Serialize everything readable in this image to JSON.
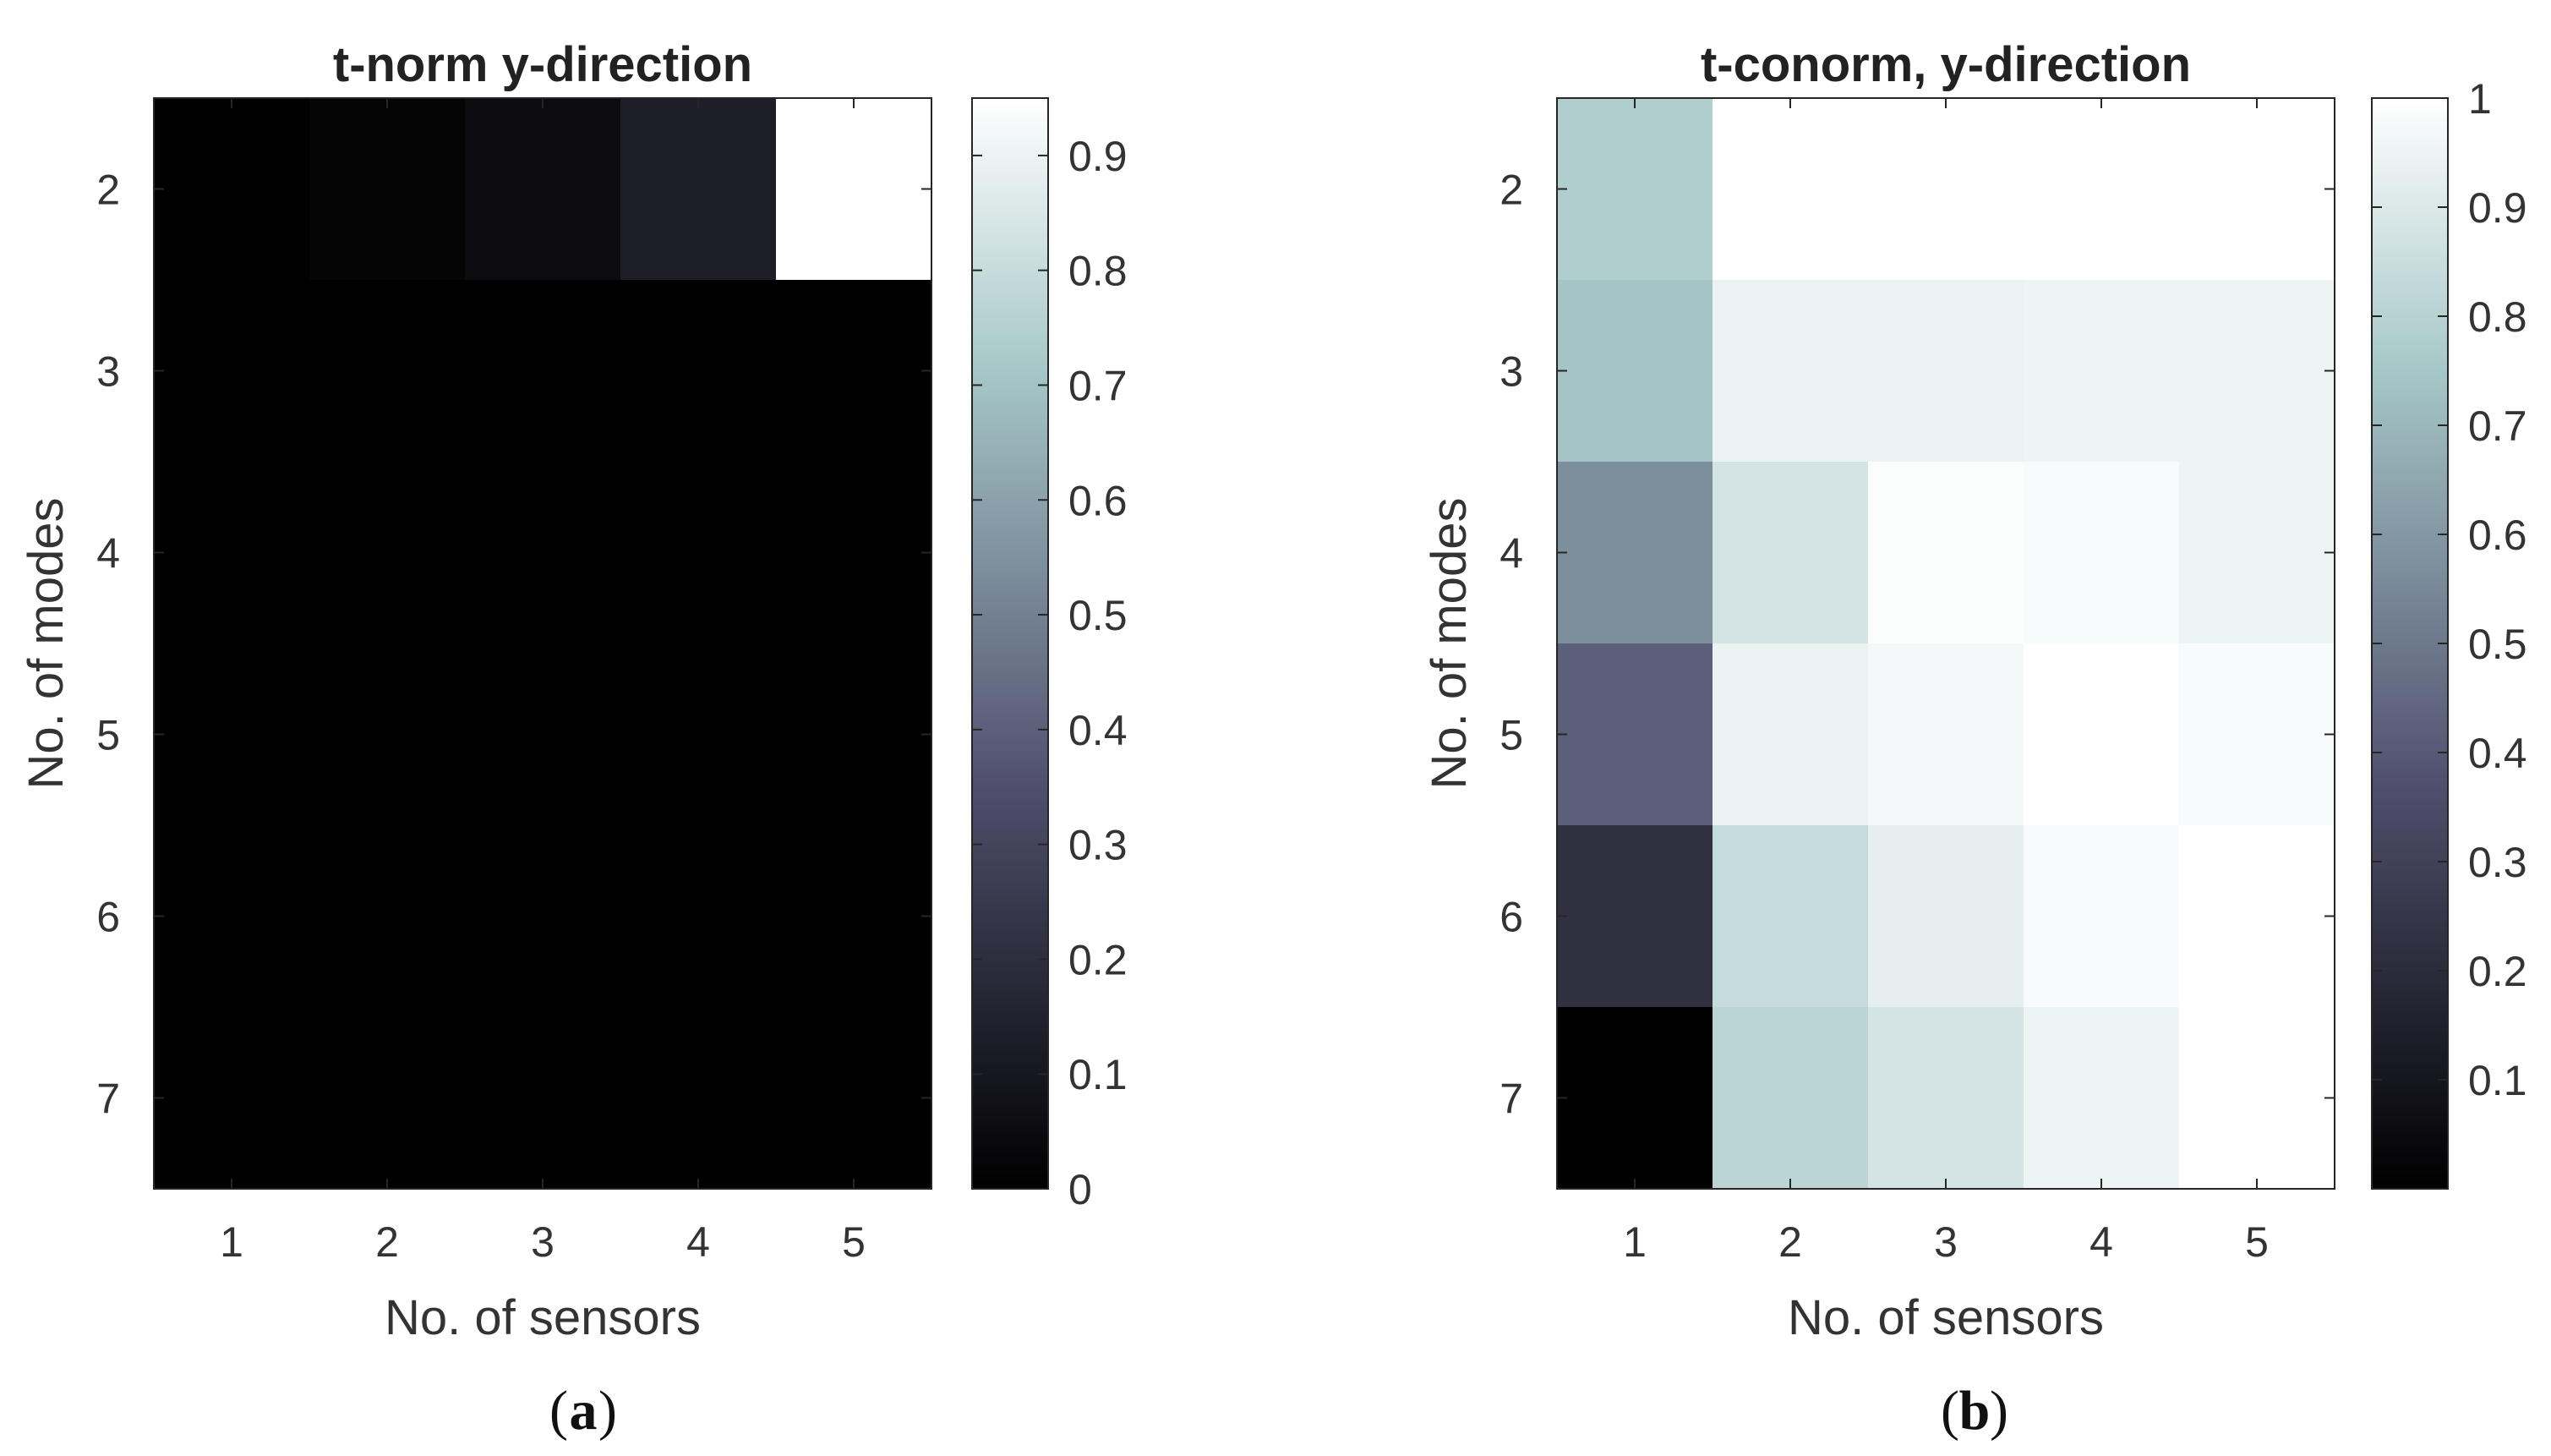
{
  "chart_data": [
    {
      "type": "heatmap",
      "caption_letter": "a",
      "title": "t-norm y-direction",
      "xlabel": "No. of sensors",
      "ylabel": "No. of modes",
      "x": [
        1,
        2,
        3,
        4,
        5
      ],
      "y": [
        2,
        3,
        4,
        5,
        6,
        7
      ],
      "x_tick_labels": [
        "1",
        "2",
        "3",
        "4",
        "5"
      ],
      "y_tick_labels": [
        "2",
        "3",
        "4",
        "5",
        "6",
        "7"
      ],
      "values": [
        [
          0.0,
          0.02,
          0.05,
          0.13,
          0.95
        ],
        [
          0.0,
          0.0,
          0.0,
          0.0,
          0.0
        ],
        [
          0.0,
          0.0,
          0.0,
          0.0,
          0.0
        ],
        [
          0.0,
          0.0,
          0.0,
          0.0,
          0.0
        ],
        [
          0.0,
          0.0,
          0.0,
          0.0,
          0.0
        ],
        [
          0.0,
          0.0,
          0.0,
          0.0,
          0.0
        ]
      ],
      "colorbar": {
        "min": 0,
        "max": 0.95,
        "ticks": [
          0,
          0.1,
          0.2,
          0.3,
          0.4,
          0.5,
          0.6,
          0.7,
          0.8,
          0.9
        ],
        "tick_labels": [
          "0",
          "0.1",
          "0.2",
          "0.3",
          "0.4",
          "0.5",
          "0.6",
          "0.7",
          "0.8",
          "0.9"
        ]
      },
      "colormap": "bone"
    },
    {
      "type": "heatmap",
      "caption_letter": "b",
      "title": "t-conorm, y-direction",
      "xlabel": "No. of sensors",
      "ylabel": "No. of modes",
      "x": [
        1,
        2,
        3,
        4,
        5
      ],
      "y": [
        2,
        3,
        4,
        5,
        6,
        7
      ],
      "x_tick_labels": [
        "1",
        "2",
        "3",
        "4",
        "5"
      ],
      "y_tick_labels": [
        "2",
        "3",
        "4",
        "5",
        "6",
        "7"
      ],
      "values": [
        [
          0.78,
          1.0,
          1.0,
          1.0,
          1.0
        ],
        [
          0.74,
          0.94,
          0.94,
          0.95,
          0.95
        ],
        [
          0.57,
          0.88,
          0.99,
          0.98,
          0.95
        ],
        [
          0.42,
          0.94,
          0.97,
          1.0,
          0.98
        ],
        [
          0.22,
          0.84,
          0.93,
          0.98,
          1.0
        ],
        [
          0.0,
          0.81,
          0.88,
          0.95,
          1.0
        ]
      ],
      "colorbar": {
        "min": 0,
        "max": 1,
        "ticks": [
          0.1,
          0.2,
          0.3,
          0.4,
          0.5,
          0.6,
          0.7,
          0.8,
          0.9,
          1
        ],
        "tick_labels": [
          "0.1",
          "0.2",
          "0.3",
          "0.4",
          "0.5",
          "0.6",
          "0.7",
          "0.8",
          "0.9",
          "1"
        ]
      },
      "colormap": "bone"
    }
  ]
}
